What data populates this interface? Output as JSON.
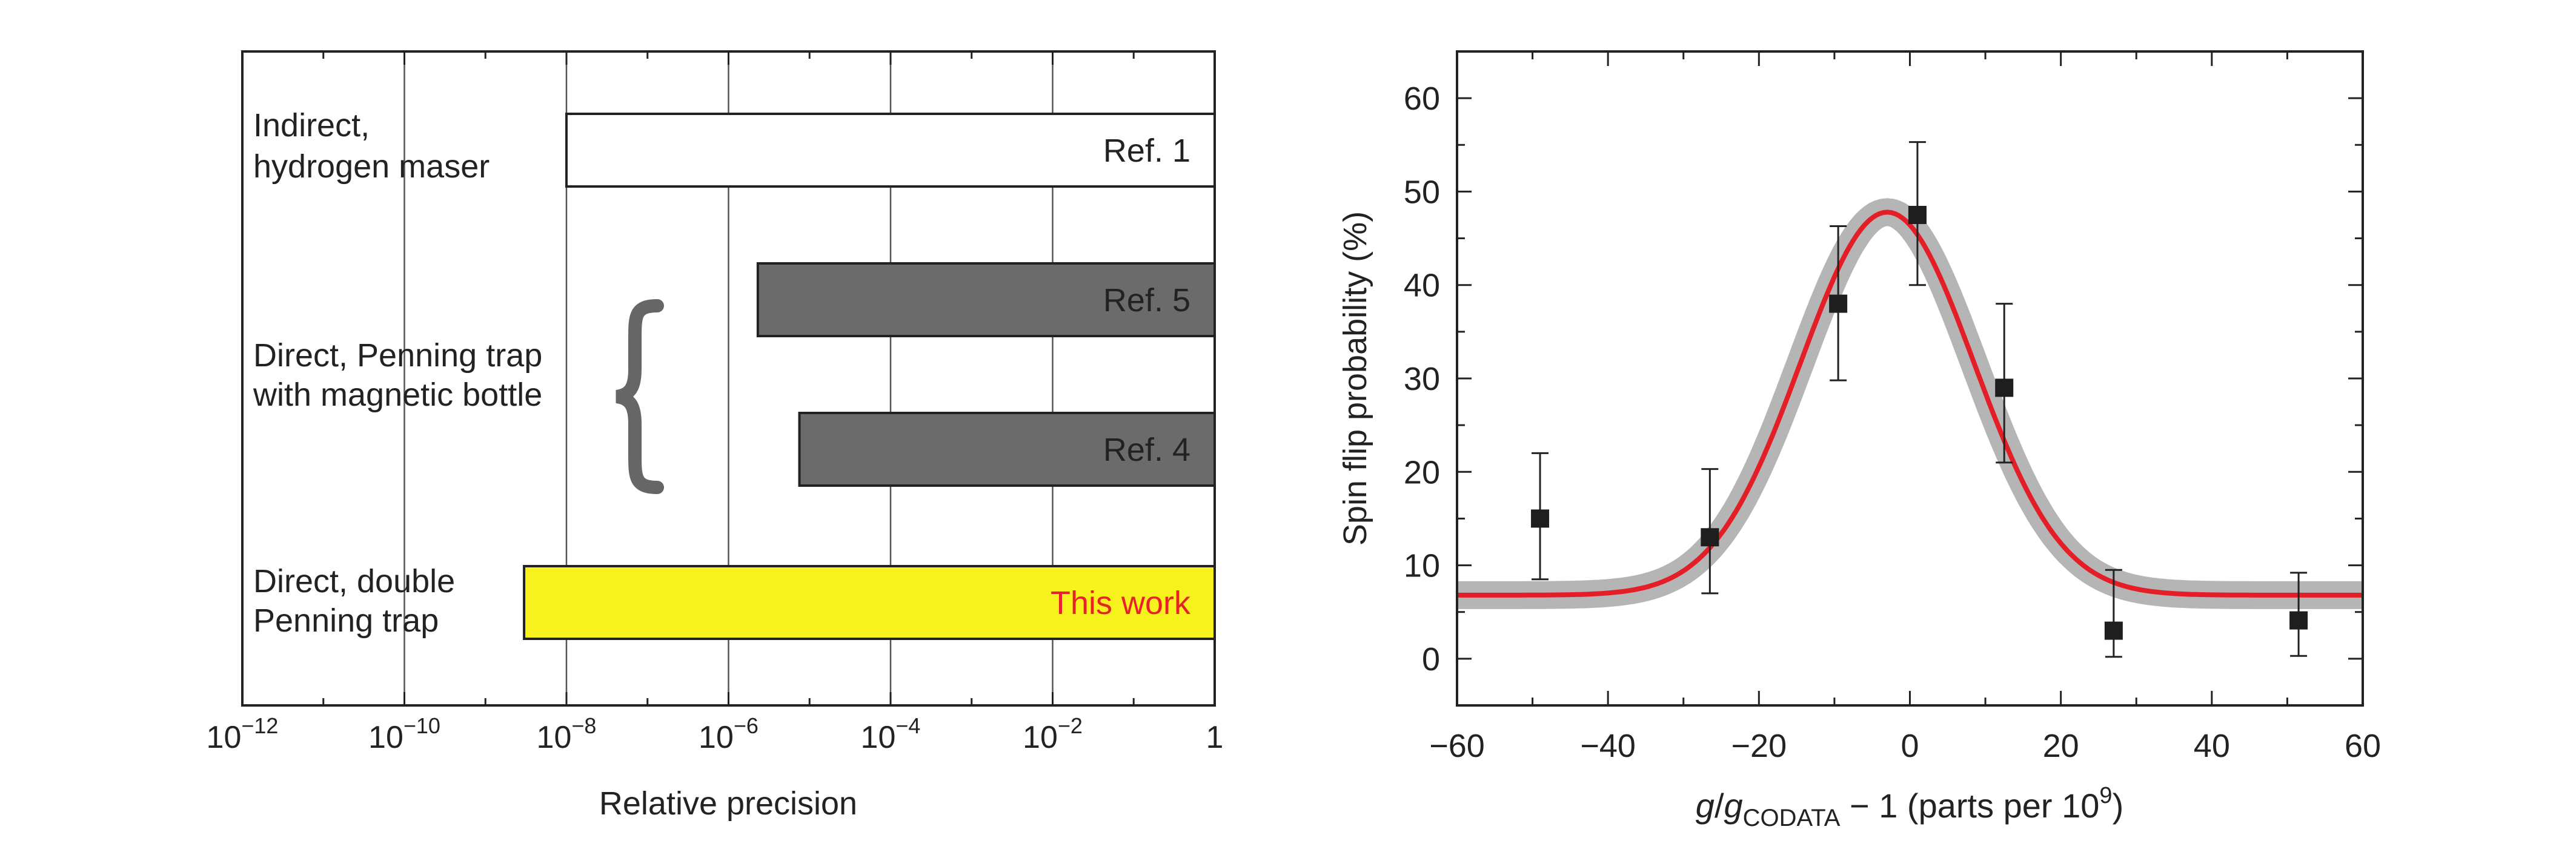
{
  "chart_data": [
    {
      "type": "bar",
      "orientation": "horizontal",
      "xlabel": "Relative precision",
      "x_scale": "log",
      "xlim": [
        1e-12,
        1
      ],
      "x_ticks": [
        {
          "value": 1e-12,
          "base": "10",
          "exp": "−12"
        },
        {
          "value": 1e-10,
          "base": "10",
          "exp": "−10"
        },
        {
          "value": 1e-08,
          "base": "10",
          "exp": "−8"
        },
        {
          "value": 1e-06,
          "base": "10",
          "exp": "−6"
        },
        {
          "value": 0.0001,
          "base": "10",
          "exp": "−4"
        },
        {
          "value": 0.01,
          "base": "10",
          "exp": "−2"
        },
        {
          "value": 1,
          "base": "1",
          "exp": ""
        }
      ],
      "grid": "vertical",
      "bars": [
        {
          "label": "Ref. 1",
          "start": 1e-08,
          "end": 1,
          "fill": "#ffffff",
          "label_color": "#222222"
        },
        {
          "label": "Ref. 5",
          "start": 2.3e-06,
          "end": 1,
          "fill": "#6b6b6b",
          "label_color": "#222222"
        },
        {
          "label": "Ref. 4",
          "start": 7.5e-06,
          "end": 1,
          "fill": "#6b6b6b",
          "label_color": "#222222"
        },
        {
          "label": "This work",
          "start": 3e-09,
          "end": 1,
          "fill": "#f7f21d",
          "label_color": "#e8202a"
        }
      ],
      "groups": [
        {
          "lines": [
            "Indirect,",
            "hydrogen maser"
          ]
        },
        {
          "lines": [
            "Direct, Penning trap",
            "with magnetic bottle"
          ]
        },
        {
          "lines": [
            "Direct, double",
            "Penning trap"
          ]
        }
      ],
      "brace_color": "#666666"
    },
    {
      "type": "scatter",
      "xlabel": {
        "italic1": "g",
        "sep": "/",
        "italic2": "g",
        "sub": "CODATA",
        "rest": " − 1 (parts per 10",
        "sup": "9",
        "end": ")"
      },
      "ylabel": "Spin flip probability (%)",
      "xlim": [
        -60,
        60
      ],
      "ylim": [
        -5,
        65
      ],
      "x_ticks": [
        "−60",
        "−40",
        "−20",
        "0",
        "20",
        "40",
        "60"
      ],
      "y_ticks": [
        "0",
        "10",
        "20",
        "30",
        "40",
        "50",
        "60"
      ],
      "points": [
        {
          "x": -49,
          "y": 15,
          "err_lo": 8.5,
          "err_hi": 22
        },
        {
          "x": -26.5,
          "y": 13,
          "err_lo": 7,
          "err_hi": 20.3
        },
        {
          "x": -9.5,
          "y": 38,
          "err_lo": 29.8,
          "err_hi": 46.3
        },
        {
          "x": 1,
          "y": 47.5,
          "err_lo": 40,
          "err_hi": 55.3
        },
        {
          "x": 12.5,
          "y": 29,
          "err_lo": 21,
          "err_hi": 38
        },
        {
          "x": 27,
          "y": 3,
          "err_lo": 0.2,
          "err_hi": 9.5
        },
        {
          "x": 51.5,
          "y": 4.1,
          "err_lo": 0.3,
          "err_hi": 9.2
        }
      ],
      "fit": {
        "model": "gaussian",
        "baseline": 6.8,
        "amplitude": 41,
        "center": -3,
        "sigma": 11.5,
        "color": "#e41e26",
        "band_color": "#b5b5b5"
      }
    }
  ]
}
